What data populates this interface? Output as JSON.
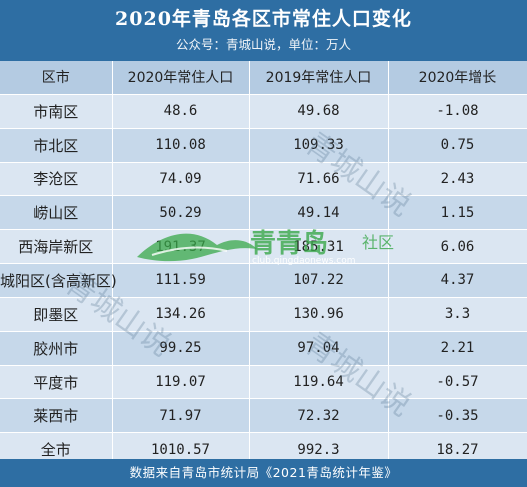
{
  "header": {
    "title": "2020年青岛各区市常住人口变化",
    "subtitle": "公众号：青城山说，单位：万人"
  },
  "table": {
    "columns": [
      "区市",
      "2020年常住人口",
      "2019年常住人口",
      "2020年增长"
    ],
    "rows": [
      [
        "市南区",
        "48.6",
        "49.68",
        "-1.08"
      ],
      [
        "市北区",
        "110.08",
        "109.33",
        "0.75"
      ],
      [
        "李沧区",
        "74.09",
        "71.66",
        "2.43"
      ],
      [
        "崂山区",
        "50.29",
        "49.14",
        "1.15"
      ],
      [
        "西海岸新区",
        "191.37",
        "185.31",
        "6.06"
      ],
      [
        "城阳区(含高新区)",
        "111.59",
        "107.22",
        "4.37"
      ],
      [
        "即墨区",
        "134.26",
        "130.96",
        "3.3"
      ],
      [
        "胶州市",
        "99.25",
        "97.04",
        "2.21"
      ],
      [
        "平度市",
        "119.07",
        "119.64",
        "-0.57"
      ],
      [
        "莱西市",
        "71.97",
        "72.32",
        "-0.35"
      ],
      [
        "全市",
        "1010.57",
        "992.3",
        "18.27"
      ]
    ]
  },
  "footer": {
    "source": "数据来自青岛市统计局《2021青岛统计年鉴》"
  },
  "watermarks": [
    "青城山说",
    "青城山说",
    "青城山说"
  ],
  "logo": {
    "brand": "青青岛",
    "suffix": "社区",
    "url": "club.qingdaonews.com"
  },
  "colors": {
    "header_bg": "#2e6ea3",
    "column_header_bg": "#b4cbe2",
    "row_light": "#dbe6f2",
    "row_dark": "#c6d8ea",
    "logo_green": "#3aa84a"
  }
}
